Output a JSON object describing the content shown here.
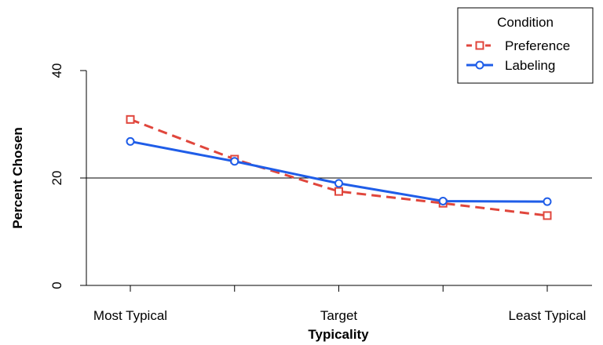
{
  "chart_data": {
    "type": "line",
    "title": "",
    "xlabel": "Typicality",
    "ylabel": "Percent Chosen",
    "x_positions": [
      1,
      2,
      3,
      4,
      5
    ],
    "x_tick_labels": [
      "Most Typical",
      "",
      "Target",
      "",
      "Least Typical"
    ],
    "xlim": [
      1,
      5
    ],
    "ylim": [
      0,
      40
    ],
    "y_ticks": [
      0,
      20,
      40
    ],
    "y_tick_labels": [
      "0",
      "20",
      "40"
    ],
    "reference_line_y": 20,
    "grid": false,
    "legend": {
      "title": "Condition",
      "placement": "top-right"
    },
    "series": [
      {
        "name": "Preference",
        "values": [
          30.9,
          23.5,
          17.5,
          15.3,
          13.0
        ],
        "color": "#e0463c",
        "line_style": "dashed",
        "marker": "square"
      },
      {
        "name": "Labeling",
        "values": [
          26.8,
          23.1,
          19.0,
          15.7,
          15.6
        ],
        "color": "#1f5de8",
        "line_style": "solid",
        "marker": "circle"
      }
    ]
  }
}
